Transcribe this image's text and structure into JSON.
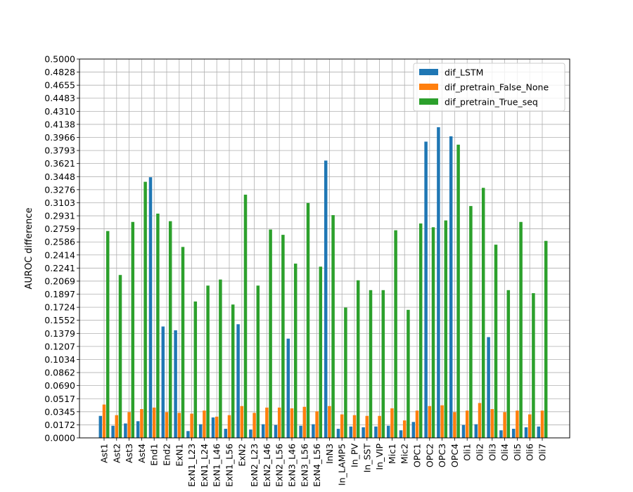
{
  "chart_data": {
    "type": "bar",
    "title": "",
    "xlabel": "",
    "ylabel": "AUROC difference",
    "ylim": [
      0.0,
      0.5
    ],
    "yticks": [
      "0.0000",
      "0.0172",
      "0.0345",
      "0.0517",
      "0.0690",
      "0.0862",
      "0.1034",
      "0.1207",
      "0.1379",
      "0.1552",
      "0.1724",
      "0.1897",
      "0.2069",
      "0.2241",
      "0.2414",
      "0.2586",
      "0.2759",
      "0.2931",
      "0.3103",
      "0.3276",
      "0.3448",
      "0.3621",
      "0.3793",
      "0.3966",
      "0.4138",
      "0.4310",
      "0.4483",
      "0.4655",
      "0.4828",
      "0.5000"
    ],
    "grid": true,
    "legend_position": "top-right",
    "categories": [
      "Ast1",
      "Ast2",
      "Ast3",
      "Ast4",
      "End1",
      "End2",
      "ExN1",
      "ExN1_L23",
      "ExN1_L24",
      "ExN1_L46",
      "ExN1_L56",
      "ExN2",
      "ExN2_L23",
      "ExN2_L46",
      "ExN2_L56",
      "ExN3_L46",
      "ExN3_L56",
      "ExN4_L56",
      "InN3",
      "In_LAMP5",
      "In_PV",
      "In_SST",
      "In_VIP",
      "Mic1",
      "Mic2",
      "OPC1",
      "OPC2",
      "OPC3",
      "OPC4",
      "Oli1",
      "Oli2",
      "Oli3",
      "Oli4",
      "Oli5",
      "Oli6",
      "Oli7"
    ],
    "series": [
      {
        "name": "dif_LSTM",
        "color": "#1f77b4",
        "values": [
          0.029,
          0.016,
          0.019,
          0.022,
          0.344,
          0.147,
          0.142,
          0.009,
          0.018,
          0.027,
          0.012,
          0.15,
          0.011,
          0.018,
          0.017,
          0.131,
          0.016,
          0.018,
          0.366,
          0.012,
          0.015,
          0.014,
          0.015,
          0.016,
          0.01,
          0.021,
          0.391,
          0.41,
          0.398,
          0.017,
          0.018,
          0.133,
          0.01,
          0.012,
          0.014,
          0.015
        ]
      },
      {
        "name": "dif_pretrain_False_None",
        "color": "#ff7f0e",
        "values": [
          0.044,
          0.03,
          0.034,
          0.038,
          0.04,
          0.034,
          0.033,
          0.032,
          0.036,
          0.028,
          0.03,
          0.042,
          0.033,
          0.04,
          0.04,
          0.039,
          0.041,
          0.035,
          0.042,
          0.031,
          0.03,
          0.029,
          0.029,
          0.039,
          0.023,
          0.036,
          0.042,
          0.043,
          0.034,
          0.036,
          0.046,
          0.038,
          0.034,
          0.036,
          0.031,
          0.036
        ]
      },
      {
        "name": "dif_pretrain_True_seq",
        "color": "#2ca02c",
        "values": [
          0.273,
          0.215,
          0.285,
          0.338,
          0.296,
          0.286,
          0.252,
          0.18,
          0.201,
          0.209,
          0.176,
          0.321,
          0.201,
          0.275,
          0.268,
          0.23,
          0.31,
          0.226,
          0.294,
          0.172,
          0.208,
          0.195,
          0.195,
          0.274,
          0.169,
          0.283,
          0.278,
          0.287,
          0.387,
          0.306,
          0.33,
          0.255,
          0.195,
          0.285,
          0.191,
          0.26
        ]
      }
    ]
  }
}
